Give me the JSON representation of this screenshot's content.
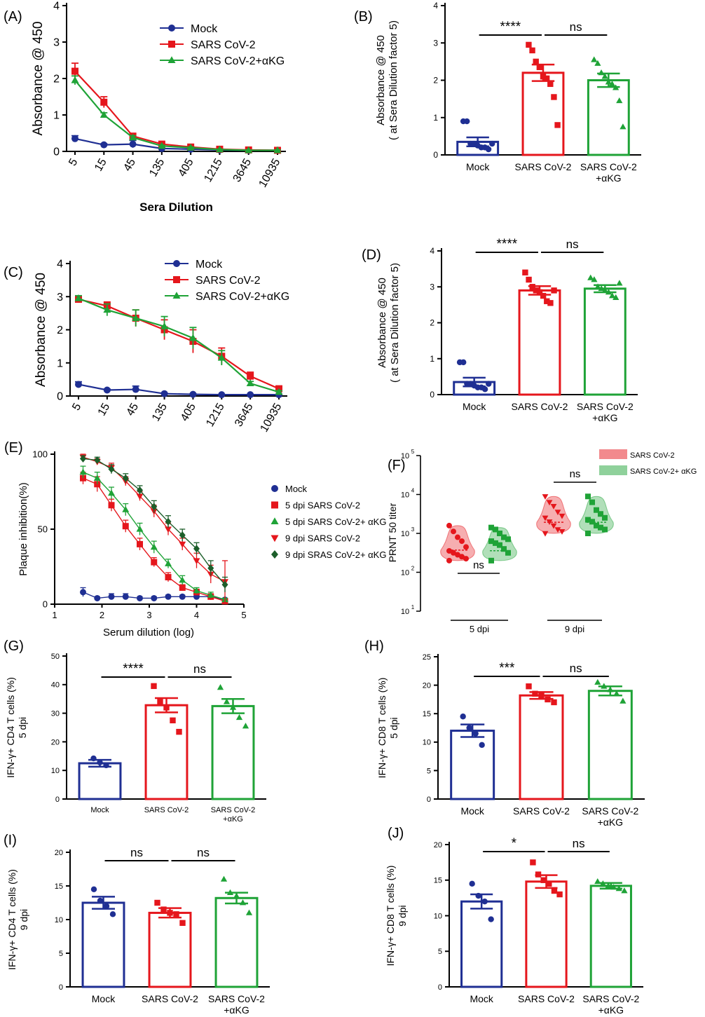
{
  "colors": {
    "mock": "#1f2f93",
    "sars": "#e5161c",
    "akg": "#1fa337",
    "axis": "#000000"
  },
  "chart_data": [
    {
      "id": "A",
      "panel_label": "(A)",
      "type": "line",
      "xlabel": "Sera Dilution",
      "ylabel": "Absorbance @ 450",
      "categories": [
        "5",
        "15",
        "45",
        "135",
        "405",
        "1215",
        "3645",
        "10935"
      ],
      "ylim": [
        0,
        4
      ],
      "yticks": [
        "0",
        "1",
        "2",
        "3",
        "4"
      ],
      "series": [
        {
          "name": "Mock",
          "key": "mock",
          "marker": "circle",
          "values": [
            0.35,
            0.18,
            0.2,
            0.08,
            0.06,
            0.04,
            0.03,
            0.03
          ],
          "err": [
            0.08,
            0.03,
            0.1,
            0.02,
            0.02,
            0.01,
            0.01,
            0.01
          ]
        },
        {
          "name": "SARS CoV-2",
          "key": "sars",
          "marker": "square",
          "values": [
            2.2,
            1.35,
            0.42,
            0.2,
            0.12,
            0.06,
            0.04,
            0.03
          ],
          "err": [
            0.22,
            0.15,
            0.06,
            0.03,
            0.02,
            0.01,
            0.01,
            0.01
          ]
        },
        {
          "name": "SARS CoV-2+αKG",
          "key": "akg",
          "marker": "triangle",
          "values": [
            1.95,
            1.0,
            0.38,
            0.15,
            0.1,
            0.05,
            0.03,
            0.03
          ],
          "err": [
            0.12,
            0.06,
            0.05,
            0.02,
            0.02,
            0.01,
            0.01,
            0.01
          ]
        }
      ]
    },
    {
      "id": "B",
      "panel_label": "(B)",
      "type": "bar",
      "ylabel": "Absorbance @ 450",
      "ylabel2": "( at Sera Dilution factor 5)",
      "ylim": [
        0,
        4
      ],
      "yticks": [
        "0",
        "1",
        "2",
        "3",
        "4"
      ],
      "categories": [
        "Mock",
        "SARS CoV-2",
        "SARS CoV-2"
      ],
      "categories2": [
        "",
        "",
        "+αKG"
      ],
      "values": [
        0.35,
        2.2,
        2.0
      ],
      "err": [
        0.12,
        0.22,
        0.18
      ],
      "points": [
        [
          0.9,
          0.9,
          0.3,
          0.3,
          0.25,
          0.2,
          0.2,
          0.15,
          0.3
        ],
        [
          2.95,
          2.8,
          2.5,
          2.35,
          2.1,
          2.05,
          1.9,
          1.55,
          0.8
        ],
        [
          2.55,
          2.45,
          2.2,
          2.1,
          1.95,
          1.9,
          1.8,
          1.45,
          0.75
        ]
      ],
      "sig": [
        {
          "a": 0,
          "b": 1,
          "label": "****"
        },
        {
          "a": 1,
          "b": 2,
          "label": "ns"
        }
      ]
    },
    {
      "id": "C",
      "panel_label": "(C)",
      "type": "line",
      "xlabel": "",
      "ylabel": "Absorbance @ 450",
      "categories": [
        "5",
        "15",
        "45",
        "135",
        "405",
        "1215",
        "3645",
        "10935"
      ],
      "ylim": [
        0,
        4
      ],
      "yticks": [
        "0",
        "1",
        "2",
        "3",
        "4"
      ],
      "series": [
        {
          "name": "Mock",
          "key": "mock",
          "marker": "circle",
          "values": [
            0.35,
            0.18,
            0.2,
            0.07,
            0.05,
            0.04,
            0.04,
            0.04
          ],
          "err": [
            0.08,
            0.03,
            0.1,
            0.02,
            0.02,
            0.01,
            0.01,
            0.01
          ]
        },
        {
          "name": "SARS CoV-2",
          "key": "sars",
          "marker": "square",
          "values": [
            2.92,
            2.72,
            2.35,
            2.0,
            1.65,
            1.2,
            0.6,
            0.22
          ],
          "err": [
            0.1,
            0.12,
            0.25,
            0.3,
            0.35,
            0.25,
            0.12,
            0.06
          ]
        },
        {
          "name": "SARS CoV-2+αKG",
          "key": "akg",
          "marker": "triangle",
          "values": [
            2.95,
            2.6,
            2.35,
            2.1,
            1.75,
            1.15,
            0.38,
            0.12
          ],
          "err": [
            0.08,
            0.18,
            0.25,
            0.3,
            0.32,
            0.22,
            0.06,
            0.04
          ]
        }
      ]
    },
    {
      "id": "D",
      "panel_label": "(D)",
      "type": "bar",
      "ylabel": "Absorbance @ 450",
      "ylabel2": "( at Sera Dilution factor 5)",
      "ylim": [
        0,
        4
      ],
      "yticks": [
        "0",
        "1",
        "2",
        "3",
        "4"
      ],
      "categories": [
        "Mock",
        "SARS CoV-2",
        "SARS CoV-2"
      ],
      "categories2": [
        "",
        "",
        "+αKG"
      ],
      "values": [
        0.35,
        2.9,
        2.95
      ],
      "err": [
        0.12,
        0.12,
        0.1
      ],
      "points": [
        [
          0.9,
          0.9,
          0.3,
          0.3,
          0.25,
          0.2,
          0.2,
          0.15,
          0.3
        ],
        [
          3.4,
          3.2,
          3.0,
          2.9,
          2.85,
          2.75,
          2.6,
          2.55,
          2.9
        ],
        [
          3.25,
          3.2,
          3.0,
          2.95,
          2.9,
          2.85,
          2.75,
          2.7,
          3.1
        ]
      ],
      "sig": [
        {
          "a": 0,
          "b": 1,
          "label": "****"
        },
        {
          "a": 1,
          "b": 2,
          "label": "ns"
        }
      ]
    },
    {
      "id": "E",
      "panel_label": "(E)",
      "type": "scatter",
      "xlabel": "Serum dilution (log)",
      "ylabel": "Plaque inhibition(%)",
      "xlim": [
        1,
        5
      ],
      "xticks": [
        "1",
        "2",
        "3",
        "4",
        "5"
      ],
      "ylim": [
        0,
        100
      ],
      "yticks": [
        "0",
        "50",
        "100"
      ],
      "x": [
        1.6,
        1.9,
        2.2,
        2.5,
        2.8,
        3.1,
        3.4,
        3.7,
        4.0,
        4.3,
        4.6
      ],
      "series": [
        {
          "name": "Mock",
          "key": "mock",
          "marker": "circle",
          "values": [
            8,
            4,
            5,
            5,
            4,
            4,
            5,
            5,
            5,
            5,
            3
          ],
          "err": [
            3,
            1,
            2,
            2,
            1,
            1,
            1,
            1,
            1,
            1,
            1
          ]
        },
        {
          "name": "5 dpi SARS CoV-2",
          "key": "sars",
          "marker": "square",
          "values": [
            84,
            80,
            66,
            52,
            40,
            28,
            18,
            11,
            8,
            5,
            2
          ],
          "err": [
            4,
            5,
            4,
            4,
            4,
            3,
            3,
            2,
            2,
            2,
            1
          ]
        },
        {
          "name": "5 dpi SARS CoV-2+ αKG",
          "key": "akg",
          "marker": "triangle",
          "values": [
            88,
            84,
            74,
            63,
            50,
            38,
            27,
            16,
            9,
            6,
            3
          ],
          "err": [
            4,
            4,
            4,
            4,
            4,
            4,
            3,
            3,
            2,
            2,
            1
          ]
        },
        {
          "name": "9 dpi SARS CoV-2",
          "key": "sars",
          "marker": "tridown",
          "values": [
            98,
            95,
            91,
            82,
            72,
            62,
            50,
            40,
            29,
            20,
            15
          ],
          "err": [
            2,
            2,
            3,
            3,
            3,
            4,
            4,
            4,
            5,
            6,
            14
          ]
        },
        {
          "name": "9 dpi SRAS CoV-2+ αKG",
          "key": "akg2",
          "marker": "diamond",
          "values": [
            97,
            96,
            90,
            84,
            76,
            65,
            55,
            46,
            37,
            24,
            13
          ],
          "err": [
            2,
            2,
            3,
            3,
            3,
            4,
            4,
            4,
            4,
            5,
            5
          ]
        }
      ]
    },
    {
      "id": "F",
      "panel_label": "(F)",
      "type": "scatter",
      "ylabel": "PRNT 50 titer",
      "yticks_exp": [
        "1",
        "2",
        "3",
        "4",
        "5"
      ],
      "ytick_base": "10",
      "ylim_log": [
        1,
        5
      ],
      "groups": [
        "5 dpi",
        "9 dpi"
      ],
      "legend": [
        {
          "name": "SARS CoV-2",
          "key": "sars"
        },
        {
          "name": "SARS CoV-2+ αKG",
          "key": "akg"
        }
      ],
      "series": [
        {
          "group": 0,
          "key": "sars",
          "marker": "circle",
          "values_log": [
            3.2,
            3.05,
            2.9,
            2.8,
            2.65,
            2.55,
            2.5,
            2.45,
            2.4,
            2.35,
            2.3
          ]
        },
        {
          "group": 0,
          "key": "akg",
          "marker": "square",
          "values_log": [
            3.15,
            3.1,
            3.0,
            2.9,
            2.85,
            2.8,
            2.75,
            2.7,
            2.6,
            2.5,
            2.3
          ]
        },
        {
          "group": 1,
          "key": "sars",
          "marker": "tridown",
          "values_log": [
            3.95,
            3.8,
            3.7,
            3.55,
            3.45,
            3.4,
            3.3,
            3.2,
            3.1,
            3.05,
            3.0
          ]
        },
        {
          "group": 1,
          "key": "akg",
          "marker": "square",
          "values_log": [
            3.95,
            3.8,
            3.6,
            3.5,
            3.4,
            3.35,
            3.3,
            3.2,
            3.15,
            3.1,
            3.0
          ]
        }
      ],
      "sig": [
        {
          "label": "ns"
        },
        {
          "label": "ns"
        }
      ]
    },
    {
      "id": "G",
      "panel_label": "(G)",
      "type": "bar",
      "ylabel": "IFN-γ+ CD4 T cells (%)",
      "ylabel2": "5 dpi",
      "ylim": [
        0,
        50
      ],
      "yticks": [
        "0",
        "10",
        "20",
        "30",
        "40",
        "50"
      ],
      "categories": [
        "Mock",
        "SARS CoV-2",
        "SARS CoV-2"
      ],
      "categories2": [
        "",
        "",
        "+αKG"
      ],
      "values": [
        12.5,
        32.8,
        32.5
      ],
      "err": [
        1.2,
        2.5,
        2.5
      ],
      "points": [
        [
          14.2,
          12.8,
          11.8
        ],
        [
          39.5,
          34,
          32,
          27.5,
          23.5
        ],
        [
          39,
          34,
          32,
          28.5,
          25.5
        ]
      ],
      "sig": [
        {
          "a": 0,
          "b": 1,
          "label": "****"
        },
        {
          "a": 1,
          "b": 2,
          "label": "ns"
        }
      ]
    },
    {
      "id": "H",
      "panel_label": "(H)",
      "type": "bar",
      "ylabel": "IFN-γ+ CD8 T cells (%)",
      "ylabel2": "5 dpi",
      "ylim": [
        0,
        25
      ],
      "yticks": [
        "0",
        "5",
        "10",
        "15",
        "20",
        "25"
      ],
      "categories": [
        "Mock",
        "SARS CoV-2",
        "SARS CoV-2"
      ],
      "categories2": [
        "",
        "",
        "+αKG"
      ],
      "values": [
        12,
        18.2,
        19
      ],
      "err": [
        1.1,
        0.6,
        0.8
      ],
      "points": [
        [
          14.5,
          12.5,
          11.5,
          9.5
        ],
        [
          19.8,
          18.5,
          18.2,
          17.5,
          17
        ],
        [
          20.5,
          19.8,
          19.2,
          18.5,
          17.2
        ]
      ],
      "sig": [
        {
          "a": 0,
          "b": 1,
          "label": "***"
        },
        {
          "a": 1,
          "b": 2,
          "label": "ns"
        }
      ]
    },
    {
      "id": "I",
      "panel_label": "(I)",
      "type": "bar",
      "ylabel": "IFN-γ+ CD4 T cells (%)",
      "ylabel2": "9 dpi",
      "ylim": [
        0,
        20
      ],
      "yticks": [
        "0",
        "5",
        "10",
        "15",
        "20"
      ],
      "categories": [
        "Mock",
        "SARS CoV-2",
        "SARS CoV-2"
      ],
      "categories2": [
        "",
        "",
        "+αKG"
      ],
      "values": [
        12.5,
        11,
        13.2
      ],
      "err": [
        0.9,
        0.7,
        0.8
      ],
      "points": [
        [
          14.5,
          12.8,
          12,
          10.8
        ],
        [
          12.5,
          11.5,
          11,
          10.8,
          9.5
        ],
        [
          16,
          14,
          13.5,
          12.5,
          11
        ]
      ],
      "sig": [
        {
          "a": 0,
          "b": 1,
          "label": "ns"
        },
        {
          "a": 1,
          "b": 2,
          "label": "ns"
        }
      ]
    },
    {
      "id": "J",
      "panel_label": "(J)",
      "type": "bar",
      "ylabel": "IFN-γ+ CD8 T cells (%)",
      "ylabel2": "9 dpi",
      "ylim": [
        0,
        20
      ],
      "yticks": [
        "0",
        "5",
        "10",
        "15",
        "20"
      ],
      "categories": [
        "Mock",
        "SARS CoV-2",
        "SARS CoV-2"
      ],
      "categories2": [
        "",
        "",
        "+αKG"
      ],
      "values": [
        12,
        14.8,
        14.2
      ],
      "err": [
        1.0,
        0.9,
        0.4
      ],
      "points": [
        [
          14.5,
          12.8,
          12,
          9.5
        ],
        [
          17.5,
          15.8,
          15,
          14.5,
          13.5,
          13
        ],
        [
          14.8,
          14.5,
          14.2,
          14,
          13.8,
          13.5
        ]
      ],
      "sig": [
        {
          "a": 0,
          "b": 1,
          "label": "*"
        },
        {
          "a": 1,
          "b": 2,
          "label": "ns"
        }
      ]
    }
  ]
}
